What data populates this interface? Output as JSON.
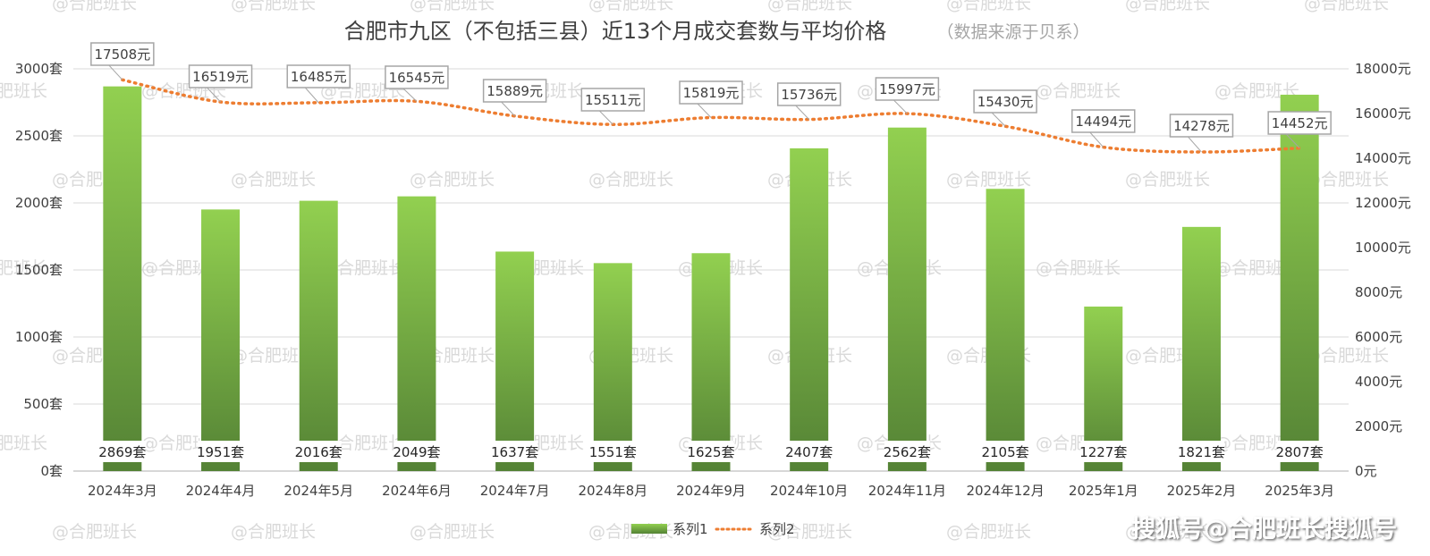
{
  "chart_data": {
    "type": "bar",
    "title": "合肥市九区（不包括三县）近13个月成交套数与平均价格",
    "subtitle": "（数据来源于贝系）",
    "categories": [
      "2024年3月",
      "2024年4月",
      "2024年5月",
      "2024年6月",
      "2024年7月",
      "2024年8月",
      "2024年9月",
      "2024年10月",
      "2024年11月",
      "2024年12月",
      "2025年1月",
      "2025年2月",
      "2025年3月"
    ],
    "series": [
      {
        "name": "系列1",
        "type": "bar",
        "axis": "left",
        "unit": "套",
        "values": [
          2869,
          1951,
          2016,
          2049,
          1637,
          1551,
          1625,
          2407,
          2562,
          2105,
          1227,
          1821,
          2807
        ],
        "labels": [
          "2869套",
          "1951套",
          "2016套",
          "2049套",
          "1637套",
          "1551套",
          "1625套",
          "2407套",
          "2562套",
          "2105套",
          "1227套",
          "1821套",
          "2807套"
        ],
        "color": "#92d050",
        "color_dark": "#548235"
      },
      {
        "name": "系列2",
        "type": "line",
        "style": "dotted-smooth",
        "axis": "right",
        "unit": "元",
        "values": [
          17508,
          16519,
          16485,
          16545,
          15889,
          15511,
          15819,
          15736,
          15997,
          15430,
          14494,
          14278,
          14452
        ],
        "labels": [
          "17508元",
          "16519元",
          "16485元",
          "16545元",
          "15889元",
          "15511元",
          "15819元",
          "15736元",
          "15997元",
          "15430元",
          "14494元",
          "14278元",
          "14452元"
        ],
        "color": "#ed7d31"
      }
    ],
    "y_left": {
      "range": [
        0,
        3000
      ],
      "ticks": [
        0,
        500,
        1000,
        1500,
        2000,
        2500,
        3000
      ],
      "tick_labels": [
        "0套",
        "500套",
        "1000套",
        "1500套",
        "2000套",
        "2500套",
        "3000套"
      ]
    },
    "y_right": {
      "range": [
        0,
        18000
      ],
      "ticks": [
        0,
        2000,
        4000,
        6000,
        8000,
        10000,
        12000,
        14000,
        16000,
        18000
      ],
      "tick_labels": [
        "0元",
        "2000元",
        "4000元",
        "6000元",
        "8000元",
        "10000元",
        "12000元",
        "14000元",
        "16000元",
        "18000元"
      ]
    },
    "grid": true,
    "legend": "bottom-center"
  },
  "watermark": "@合肥班长",
  "credit": "搜狐号@合肥班长搜狐号",
  "colors": {
    "grid": "#d9d9d9",
    "axis_line": "#bfbfbf",
    "label_box_border": "#a6a6a6",
    "credit_shadow": "#7f7f7f"
  }
}
